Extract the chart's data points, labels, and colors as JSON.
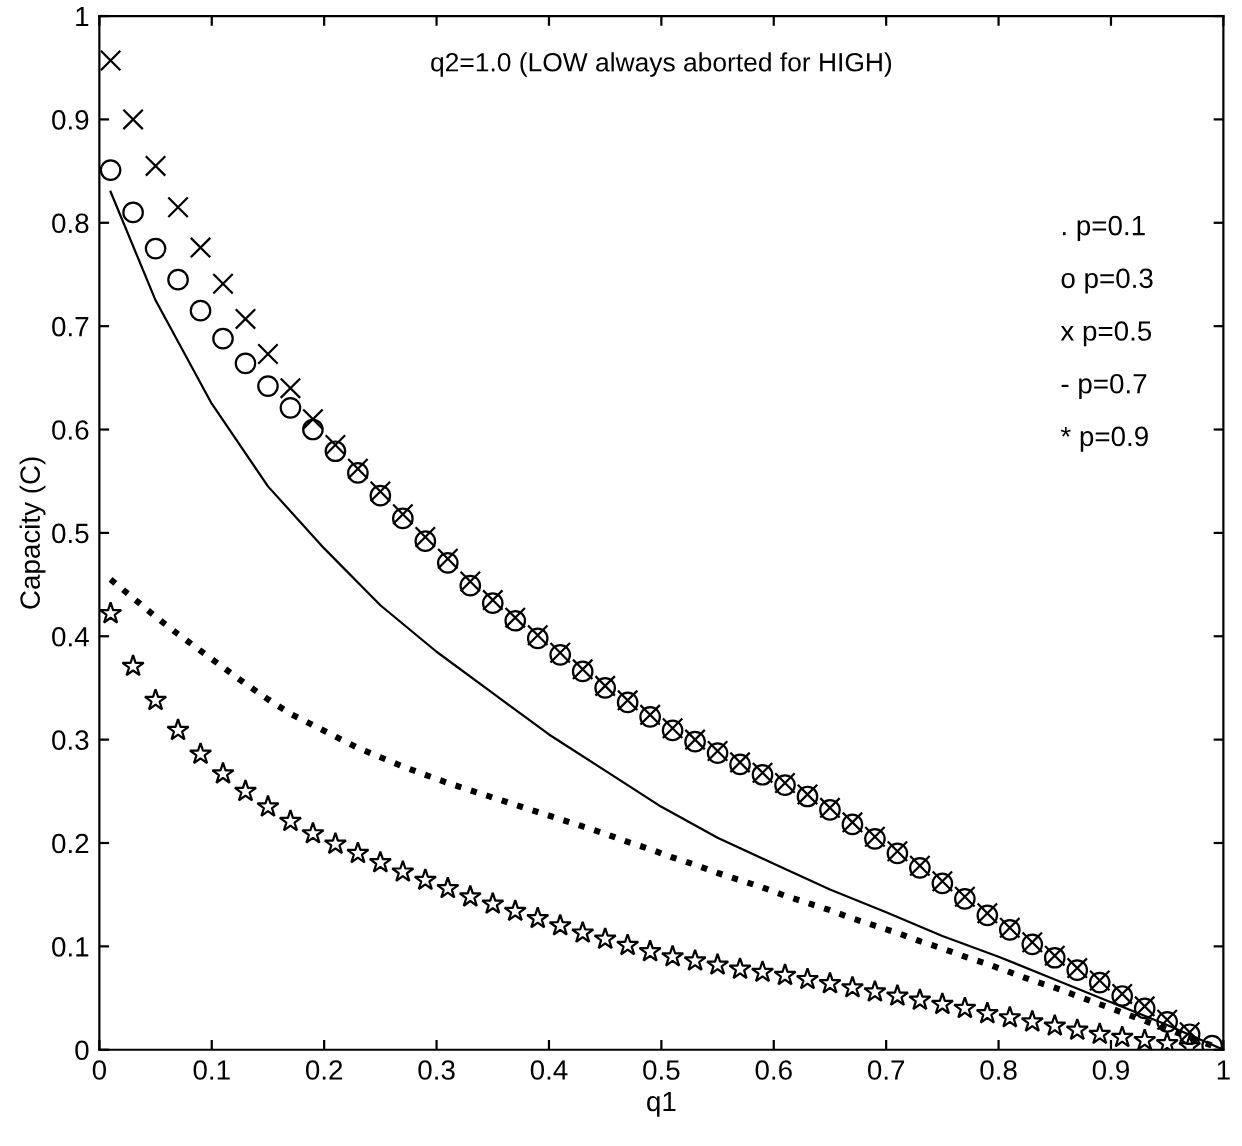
{
  "chart_data": {
    "type": "line",
    "title": "q2=1.0 (LOW always aborted for HIGH)",
    "xlabel": "q1",
    "ylabel": "Capacity (C)",
    "x": [
      0.01,
      0.03,
      0.05,
      0.07,
      0.09,
      0.11,
      0.13,
      0.15,
      0.17,
      0.19,
      0.21,
      0.23,
      0.25,
      0.27,
      0.29,
      0.31,
      0.33,
      0.35,
      0.37,
      0.39,
      0.41,
      0.43,
      0.45,
      0.47,
      0.49,
      0.51,
      0.53,
      0.55,
      0.57,
      0.59,
      0.61,
      0.63,
      0.65,
      0.67,
      0.69,
      0.71,
      0.73,
      0.75,
      0.77,
      0.79,
      0.81,
      0.83,
      0.85,
      0.87,
      0.89,
      0.91,
      0.93,
      0.95,
      0.97,
      0.99
    ],
    "series": [
      {
        "color": "#000000",
        "marker": "none",
        "line_style": "dotted",
        "values": [
          0.455,
          0.437,
          0.419,
          0.402,
          0.386,
          0.37,
          0.354,
          0.339,
          0.325,
          0.314,
          0.303,
          0.292,
          0.283,
          0.274,
          0.266,
          0.258,
          0.251,
          0.244,
          0.237,
          0.23,
          0.223,
          0.216,
          0.209,
          0.201,
          0.194,
          0.186,
          0.179,
          0.171,
          0.164,
          0.157,
          0.149,
          0.142,
          0.135,
          0.127,
          0.12,
          0.113,
          0.105,
          0.098,
          0.09,
          0.083,
          0.075,
          0.067,
          0.06,
          0.052,
          0.044,
          0.036,
          0.028,
          0.02,
          0.012,
          0.004
        ]
      },
      {
        "color": "#000000",
        "type": "scatter",
        "marker": "circle",
        "values": [
          0.851,
          0.81,
          0.775,
          0.745,
          0.715,
          0.688,
          0.664,
          0.642,
          0.621,
          0.6,
          0.579,
          0.558,
          0.536,
          0.514,
          0.492,
          0.471,
          0.449,
          0.432,
          0.415,
          0.398,
          0.382,
          0.366,
          0.35,
          0.336,
          0.322,
          0.309,
          0.298,
          0.287,
          0.276,
          0.266,
          0.256,
          0.245,
          0.232,
          0.218,
          0.204,
          0.19,
          0.176,
          0.161,
          0.146,
          0.13,
          0.116,
          0.102,
          0.089,
          0.077,
          0.065,
          0.052,
          0.04,
          0.027,
          0.015,
          0.004
        ]
      },
      {
        "color": "#000000",
        "type": "scatter",
        "marker": "cross",
        "values": [
          0.957,
          0.9,
          0.855,
          0.815,
          0.776,
          0.741,
          0.707,
          0.673,
          0.64,
          0.61,
          0.585,
          0.562,
          0.54,
          0.518,
          0.496,
          0.475,
          0.453,
          0.435,
          0.418,
          0.401,
          0.384,
          0.368,
          0.352,
          0.338,
          0.324,
          0.311,
          0.3,
          0.289,
          0.278,
          0.268,
          0.258,
          0.247,
          0.234,
          0.22,
          0.206,
          0.192,
          0.178,
          0.163,
          0.148,
          0.132,
          0.118,
          0.104,
          0.091,
          0.079,
          0.067,
          0.054,
          0.042,
          0.029,
          0.017,
          null
        ]
      },
      {
        "color": "#000000",
        "marker": "none",
        "line_style": "solid",
        "x": [
          0.01,
          0.05,
          0.1,
          0.15,
          0.2,
          0.25,
          0.3,
          0.35,
          0.4,
          0.45,
          0.5,
          0.55,
          0.6,
          0.65,
          0.7,
          0.75,
          0.8,
          0.85,
          0.9,
          0.95,
          1.0
        ],
        "values": [
          0.83,
          0.725,
          0.625,
          0.545,
          0.485,
          0.43,
          0.385,
          0.345,
          0.305,
          0.27,
          0.235,
          0.205,
          0.18,
          0.155,
          0.133,
          0.11,
          0.09,
          0.068,
          0.046,
          0.024,
          0
        ]
      },
      {
        "color": "#000000",
        "type": "scatter",
        "marker": "star",
        "values": [
          0.422,
          0.371,
          0.338,
          0.309,
          0.286,
          0.267,
          0.25,
          0.235,
          0.221,
          0.209,
          0.199,
          0.19,
          0.181,
          0.172,
          0.164,
          0.156,
          0.148,
          0.141,
          0.134,
          0.127,
          0.12,
          0.113,
          0.107,
          0.101,
          0.095,
          0.09,
          0.086,
          0.082,
          0.078,
          0.075,
          0.072,
          0.068,
          0.064,
          0.06,
          0.056,
          0.052,
          0.048,
          0.044,
          0.04,
          0.035,
          0.031,
          0.027,
          0.023,
          0.019,
          0.015,
          0.012,
          0.009,
          0.006,
          0.003,
          null
        ]
      }
    ],
    "annotations": [
      ". p=0.1",
      "o p=0.3",
      "x p=0.5",
      "- p=0.7",
      "* p=0.9"
    ],
    "xlim": [
      0,
      1
    ],
    "ylim": [
      0,
      1
    ],
    "xticks": [
      0,
      0.1,
      0.2,
      0.3,
      0.4,
      0.5,
      0.6,
      0.7,
      0.8,
      0.9,
      1
    ],
    "yticks": [
      0,
      0.1,
      0.2,
      0.3,
      0.4,
      0.5,
      0.6,
      0.7,
      0.8,
      0.9,
      1
    ],
    "grid": false
  }
}
